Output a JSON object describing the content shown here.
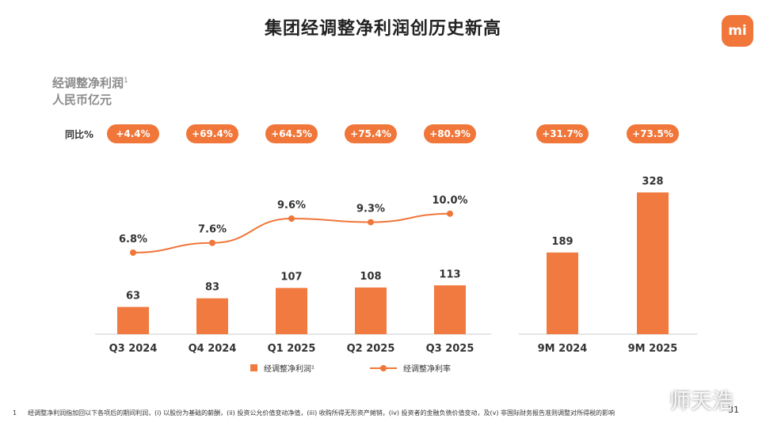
{
  "title": "集团经调整净利润创历史新高",
  "logo_text": "mi",
  "colors": {
    "accent": "#f0763a",
    "bar": "#f07a3f",
    "line": "#f0763a",
    "axis": "#cccccc"
  },
  "metric_title": "经调整净利润",
  "metric_title_sup": "1",
  "unit_label": "人民币亿元",
  "yoy_label": "同比%",
  "chart_data": [
    {
      "type": "bar",
      "categories": [
        "Q3 2024",
        "Q4 2024",
        "Q1 2025",
        "Q2 2025",
        "Q3 2025"
      ],
      "series": [
        {
          "name": "经调整净利润¹",
          "type": "bar",
          "values": [
            63,
            83,
            107,
            108,
            113
          ]
        },
        {
          "name": "经调整净利率",
          "type": "line",
          "values": [
            6.8,
            7.6,
            9.6,
            9.3,
            10.0
          ],
          "unit": "%"
        }
      ],
      "bar_labels": [
        "63",
        "83",
        "107",
        "108",
        "113"
      ],
      "line_labels": [
        "6.8%",
        "7.6%",
        "9.6%",
        "9.3%",
        "10.0%"
      ],
      "yoy": [
        "+4.4%",
        "+69.4%",
        "+64.5%",
        "+75.4%",
        "+80.9%"
      ],
      "legend": [
        "经调整净利润¹",
        "经调整净利率"
      ],
      "legend_position": "bottom",
      "grid": false
    },
    {
      "type": "bar",
      "categories": [
        "9M 2024",
        "9M 2025"
      ],
      "series": [
        {
          "name": "经调整净利润¹",
          "values": [
            189,
            328
          ]
        }
      ],
      "bar_labels": [
        "189",
        "328"
      ],
      "yoy": [
        "+31.7%",
        "+73.5%"
      ],
      "grid": false
    }
  ],
  "footnote": {
    "number": "1",
    "text": "经调整净利润指加回以下各项后的期间利润，(i) 以股份为基础的薪酬，(ii) 投资公允价值变动净值，(iii) 收购所得无形资产摊销，(iv) 投资者的金融负债价值变动，及(v) 非国际财务报告准则调整对所得税的影响"
  },
  "page_number": "31",
  "watermark": "师天浩"
}
